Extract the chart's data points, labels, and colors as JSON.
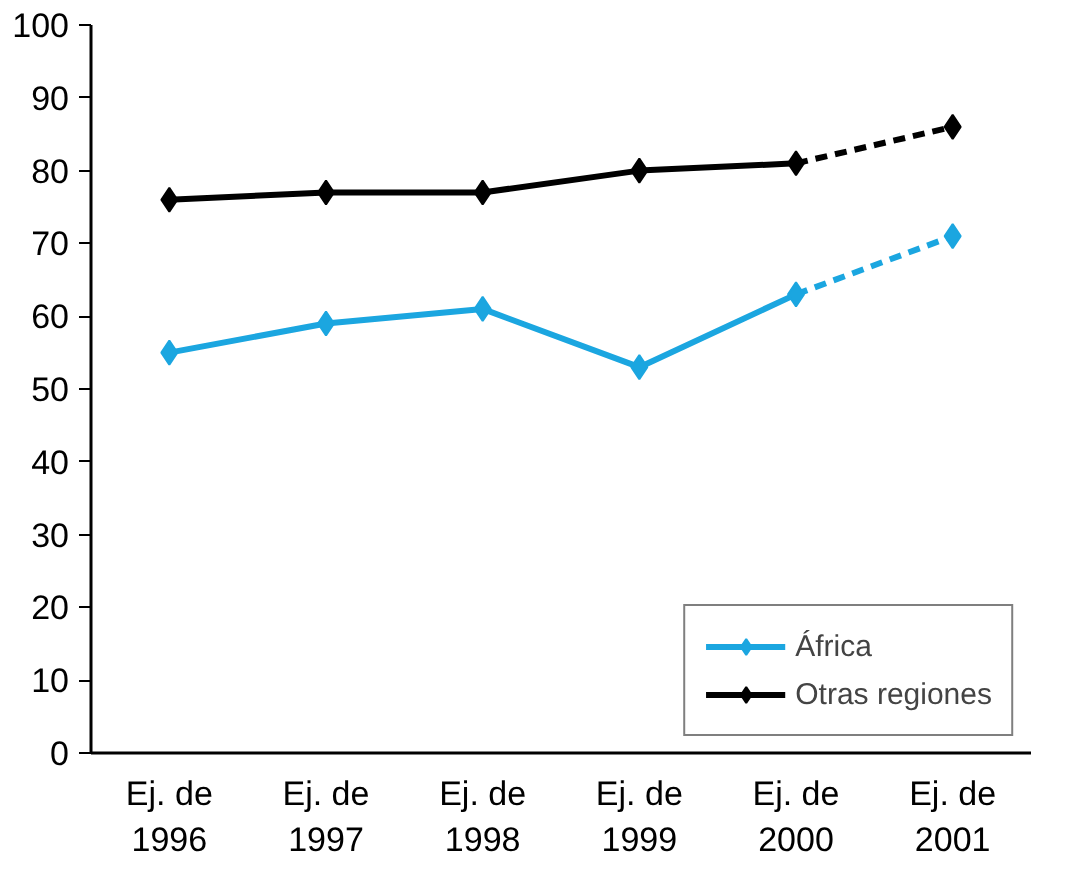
{
  "chart_data": {
    "type": "line",
    "categories": [
      "Ej. de\n1996",
      "Ej. de\n1997",
      "Ej. de\n1998",
      "Ej. de\n1999",
      "Ej. de\n2000",
      "Ej. de\n2001"
    ],
    "ylim": [
      0,
      100
    ],
    "yticks": [
      0,
      10,
      20,
      30,
      40,
      50,
      60,
      70,
      80,
      90,
      100
    ],
    "legend": "bottom right",
    "marker": "diamond",
    "series": [
      {
        "name": "África",
        "color": "#1ba6e0",
        "values": [
          55,
          59,
          61,
          53,
          63,
          71
        ],
        "line_style": [
          "solid",
          "solid",
          "solid",
          "solid",
          "dashed"
        ]
      },
      {
        "name": "Otras regiones",
        "color": "#000000",
        "values": [
          76,
          77,
          77,
          80,
          81,
          86
        ],
        "line_style": [
          "solid",
          "solid",
          "solid",
          "solid",
          "dashed"
        ]
      }
    ]
  }
}
